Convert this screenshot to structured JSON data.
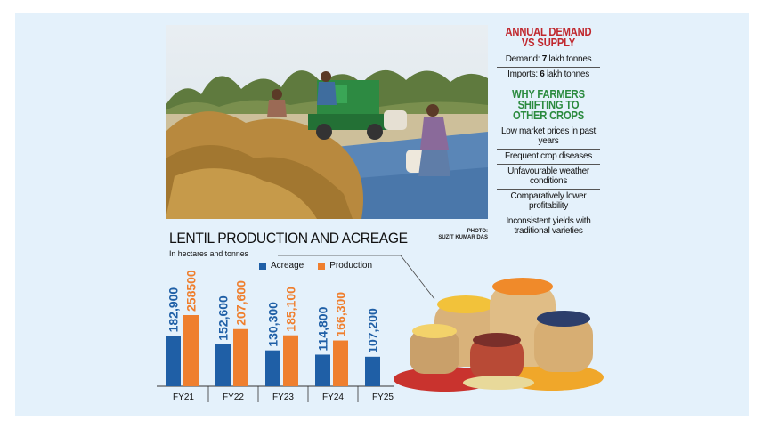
{
  "photo_credit": {
    "line1": "PHOTO:",
    "line2": "SUZIT KUMAR DAS"
  },
  "demand": {
    "heading": "ANNUAL DEMAND VS SUPPLY",
    "demand_label": "Demand: ",
    "demand_value": "7",
    "demand_unit": " lakh tonnes",
    "imports_label": "Imports: ",
    "imports_value": "6",
    "imports_unit": " lakh tonnes"
  },
  "why": {
    "heading": "WHY FARMERS SHIFTING TO OTHER CROPS",
    "reasons": [
      "Low market prices in past years",
      "Frequent crop diseases",
      "Unfavourable weather conditions",
      "Comparatively lower profitability",
      "Inconsistent yields with traditional varieties"
    ]
  },
  "colors": {
    "acreage": "#1f5fa6",
    "production": "#ef7f2e",
    "heading_red": "#c0272d",
    "heading_green": "#2a8a3e",
    "background": "#e4f1fb"
  },
  "chart_data": {
    "type": "bar",
    "title": "LENTIL PRODUCTION AND ACREAGE",
    "subtitle": "In hectares and tonnes",
    "legend_position": "top",
    "categories": [
      "FY21",
      "FY22",
      "FY23",
      "FY24",
      "FY25"
    ],
    "series": [
      {
        "name": "Acreage",
        "values": [
          182900,
          152600,
          130300,
          114800,
          107200
        ],
        "labels": [
          "182,900",
          "152,600",
          "130,300",
          "114,800",
          "107,200"
        ]
      },
      {
        "name": "Production",
        "values": [
          258500,
          207600,
          185100,
          166300,
          null
        ],
        "labels": [
          "258500",
          "207,600",
          "185,100",
          "166,300",
          ""
        ]
      }
    ],
    "ylim": [
      0,
      258500
    ],
    "grid": false
  }
}
